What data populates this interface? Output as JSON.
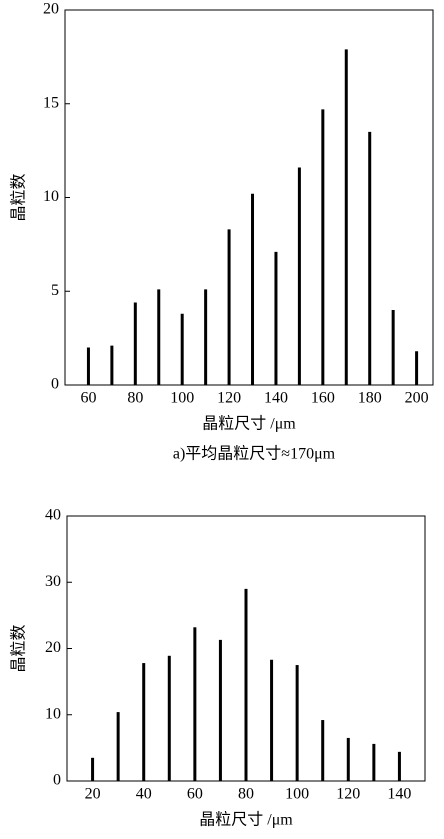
{
  "chart_data": [
    {
      "type": "bar",
      "color": "#000000",
      "x": [
        60,
        70,
        80,
        90,
        100,
        110,
        120,
        130,
        140,
        150,
        160,
        170,
        180,
        190,
        200
      ],
      "values": [
        2,
        2.1,
        4.4,
        5.1,
        3.8,
        5.1,
        8.3,
        10.2,
        7.1,
        11.6,
        14.7,
        17.9,
        13.5,
        4,
        1.8
      ],
      "xlim": [
        50,
        207
      ],
      "ylim": [
        0,
        20
      ],
      "xticks": [
        60,
        80,
        100,
        120,
        140,
        160,
        180,
        200
      ],
      "yticks": [
        0,
        5,
        10,
        15,
        20
      ],
      "x_label": "晶粒尺寸 /μm",
      "y_label": "晶粒数",
      "caption": "a)平均晶粒尺寸≈170μm"
    },
    {
      "type": "bar",
      "color": "#000000",
      "x": [
        20,
        30,
        40,
        50,
        60,
        70,
        80,
        90,
        100,
        110,
        120,
        130,
        140
      ],
      "values": [
        3.5,
        10.4,
        17.8,
        18.9,
        23.2,
        21.3,
        29,
        18.3,
        17.5,
        9.2,
        6.5,
        5.6,
        4.4
      ],
      "xlim": [
        10,
        150
      ],
      "ylim": [
        0,
        40
      ],
      "xticks": [
        20,
        40,
        60,
        80,
        100,
        120,
        140
      ],
      "yticks": [
        0,
        10,
        20,
        30,
        40
      ],
      "x_label": "晶粒尺寸 /μm",
      "y_label": "晶粒数"
    }
  ]
}
